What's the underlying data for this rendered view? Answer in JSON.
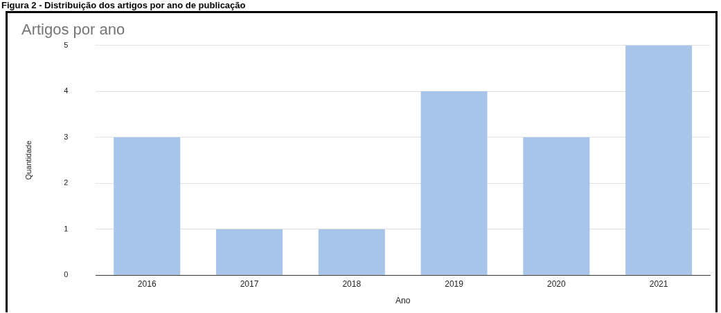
{
  "chart_data": {
    "type": "bar",
    "title": "Artigos por ano",
    "xlabel": "Ano",
    "ylabel": "Quantidade",
    "categories": [
      "2016",
      "2017",
      "2018",
      "2019",
      "2020",
      "2021"
    ],
    "values": [
      3,
      1,
      1,
      4,
      3,
      5
    ],
    "color": "#a8c5e9",
    "ylim": [
      0,
      5
    ],
    "yticks": [
      0,
      1,
      2,
      3,
      4,
      5
    ],
    "grid": "y",
    "annotations": [
      "Figura 2 - Distribuição dos artigos por ano de publicação"
    ]
  }
}
